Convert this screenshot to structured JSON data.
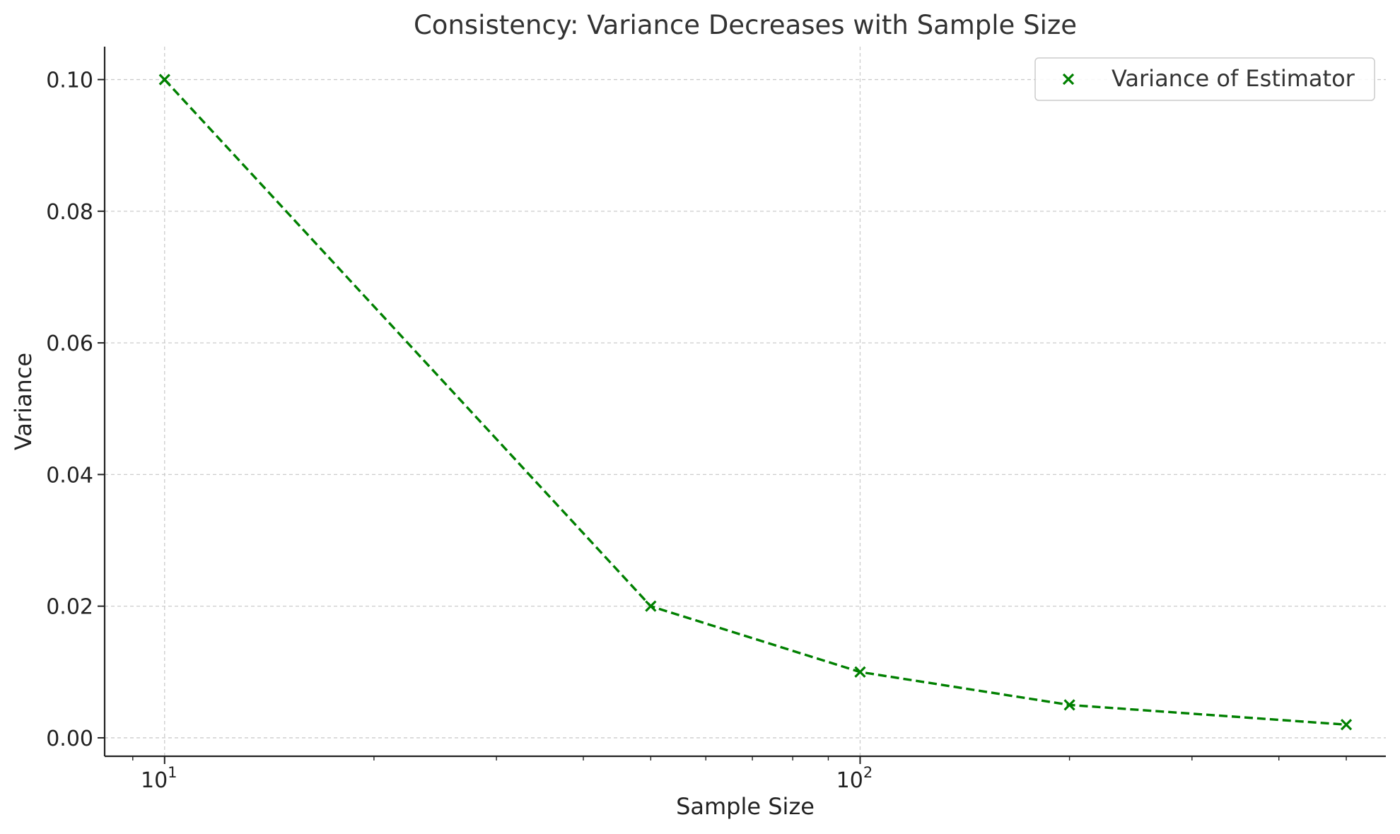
{
  "chart_data": {
    "type": "line",
    "title": "Consistency: Variance Decreases with Sample Size",
    "xlabel": "Sample Size",
    "ylabel": "Variance",
    "x_scale": "log",
    "xlim": [
      8.2,
      570
    ],
    "ylim": [
      -0.0028,
      0.105
    ],
    "grid": true,
    "legend_position": "top-right",
    "x_ticks": [
      {
        "value": 10,
        "base": "10",
        "exponent": "1"
      },
      {
        "value": 100,
        "base": "10",
        "exponent": "2"
      }
    ],
    "y_ticks": [
      {
        "value": 0.0,
        "label": "0.00"
      },
      {
        "value": 0.02,
        "label": "0.02"
      },
      {
        "value": 0.04,
        "label": "0.04"
      },
      {
        "value": 0.06,
        "label": "0.06"
      },
      {
        "value": 0.08,
        "label": "0.08"
      },
      {
        "value": 0.1,
        "label": "0.10"
      }
    ],
    "series": [
      {
        "name": "Variance of Estimator",
        "color": "#008000",
        "line_style": "dashed",
        "marker": "x",
        "x": [
          10,
          50,
          100,
          200,
          500
        ],
        "y": [
          0.1,
          0.02,
          0.01,
          0.005,
          0.002
        ]
      }
    ]
  }
}
